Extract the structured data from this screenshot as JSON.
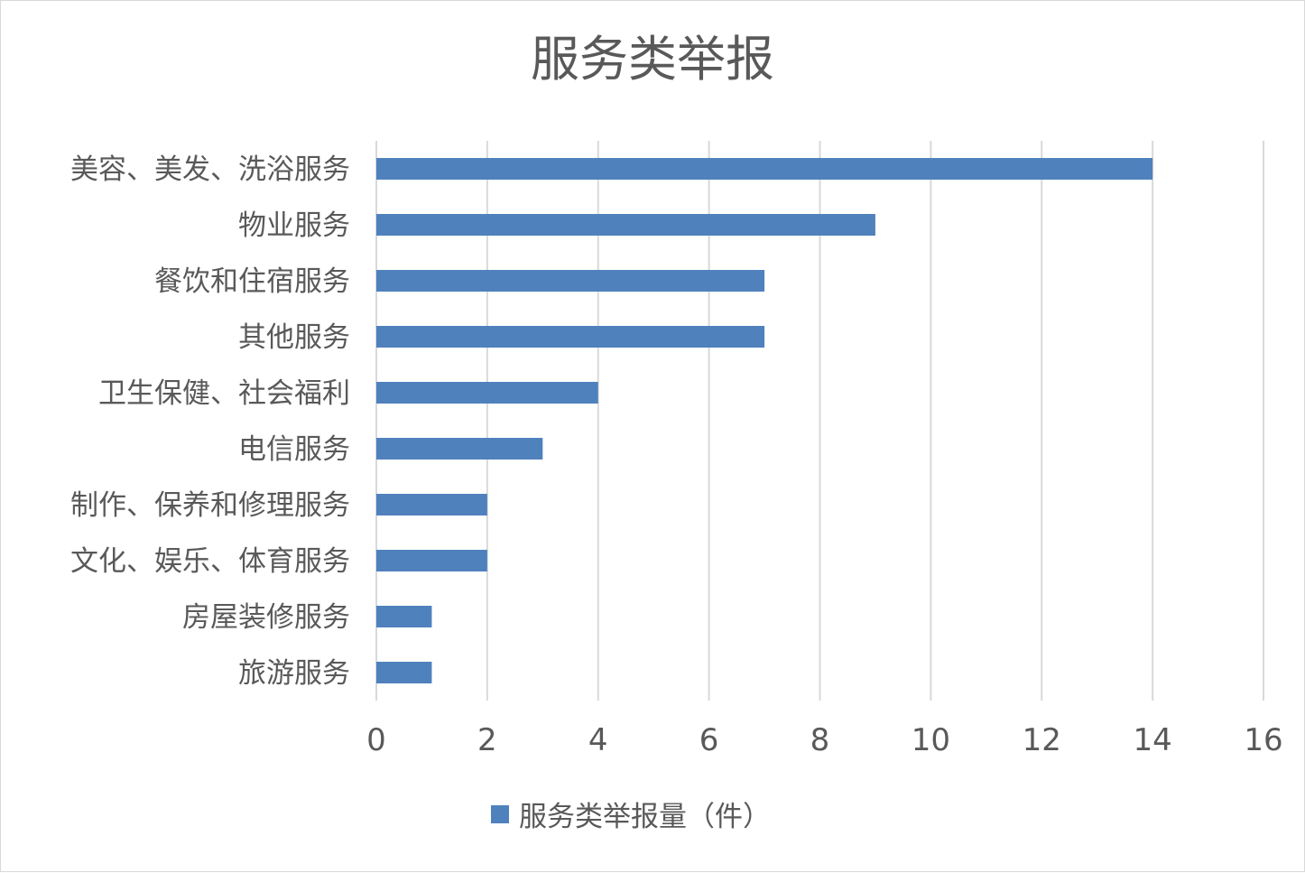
{
  "chart_data": {
    "type": "bar",
    "orientation": "horizontal",
    "title": "服务类举报",
    "categories": [
      "美容、美发、洗浴服务",
      "物业服务",
      "餐饮和住宿服务",
      "其他服务",
      "卫生保健、社会福利",
      "电信服务",
      "制作、保养和修理服务",
      "文化、娱乐、体育服务",
      "房屋装修服务",
      "旅游服务"
    ],
    "series": [
      {
        "name": "服务类举报量（件）",
        "values": [
          14,
          9,
          7,
          7,
          4,
          3,
          2,
          2,
          1,
          1
        ]
      }
    ],
    "xlim": [
      0,
      16
    ],
    "xticks": [
      "0",
      "2",
      "4",
      "6",
      "8",
      "10",
      "12",
      "14",
      "16"
    ],
    "grid": true,
    "legend_position": "bottom",
    "bar_color": "#4f81bd"
  }
}
